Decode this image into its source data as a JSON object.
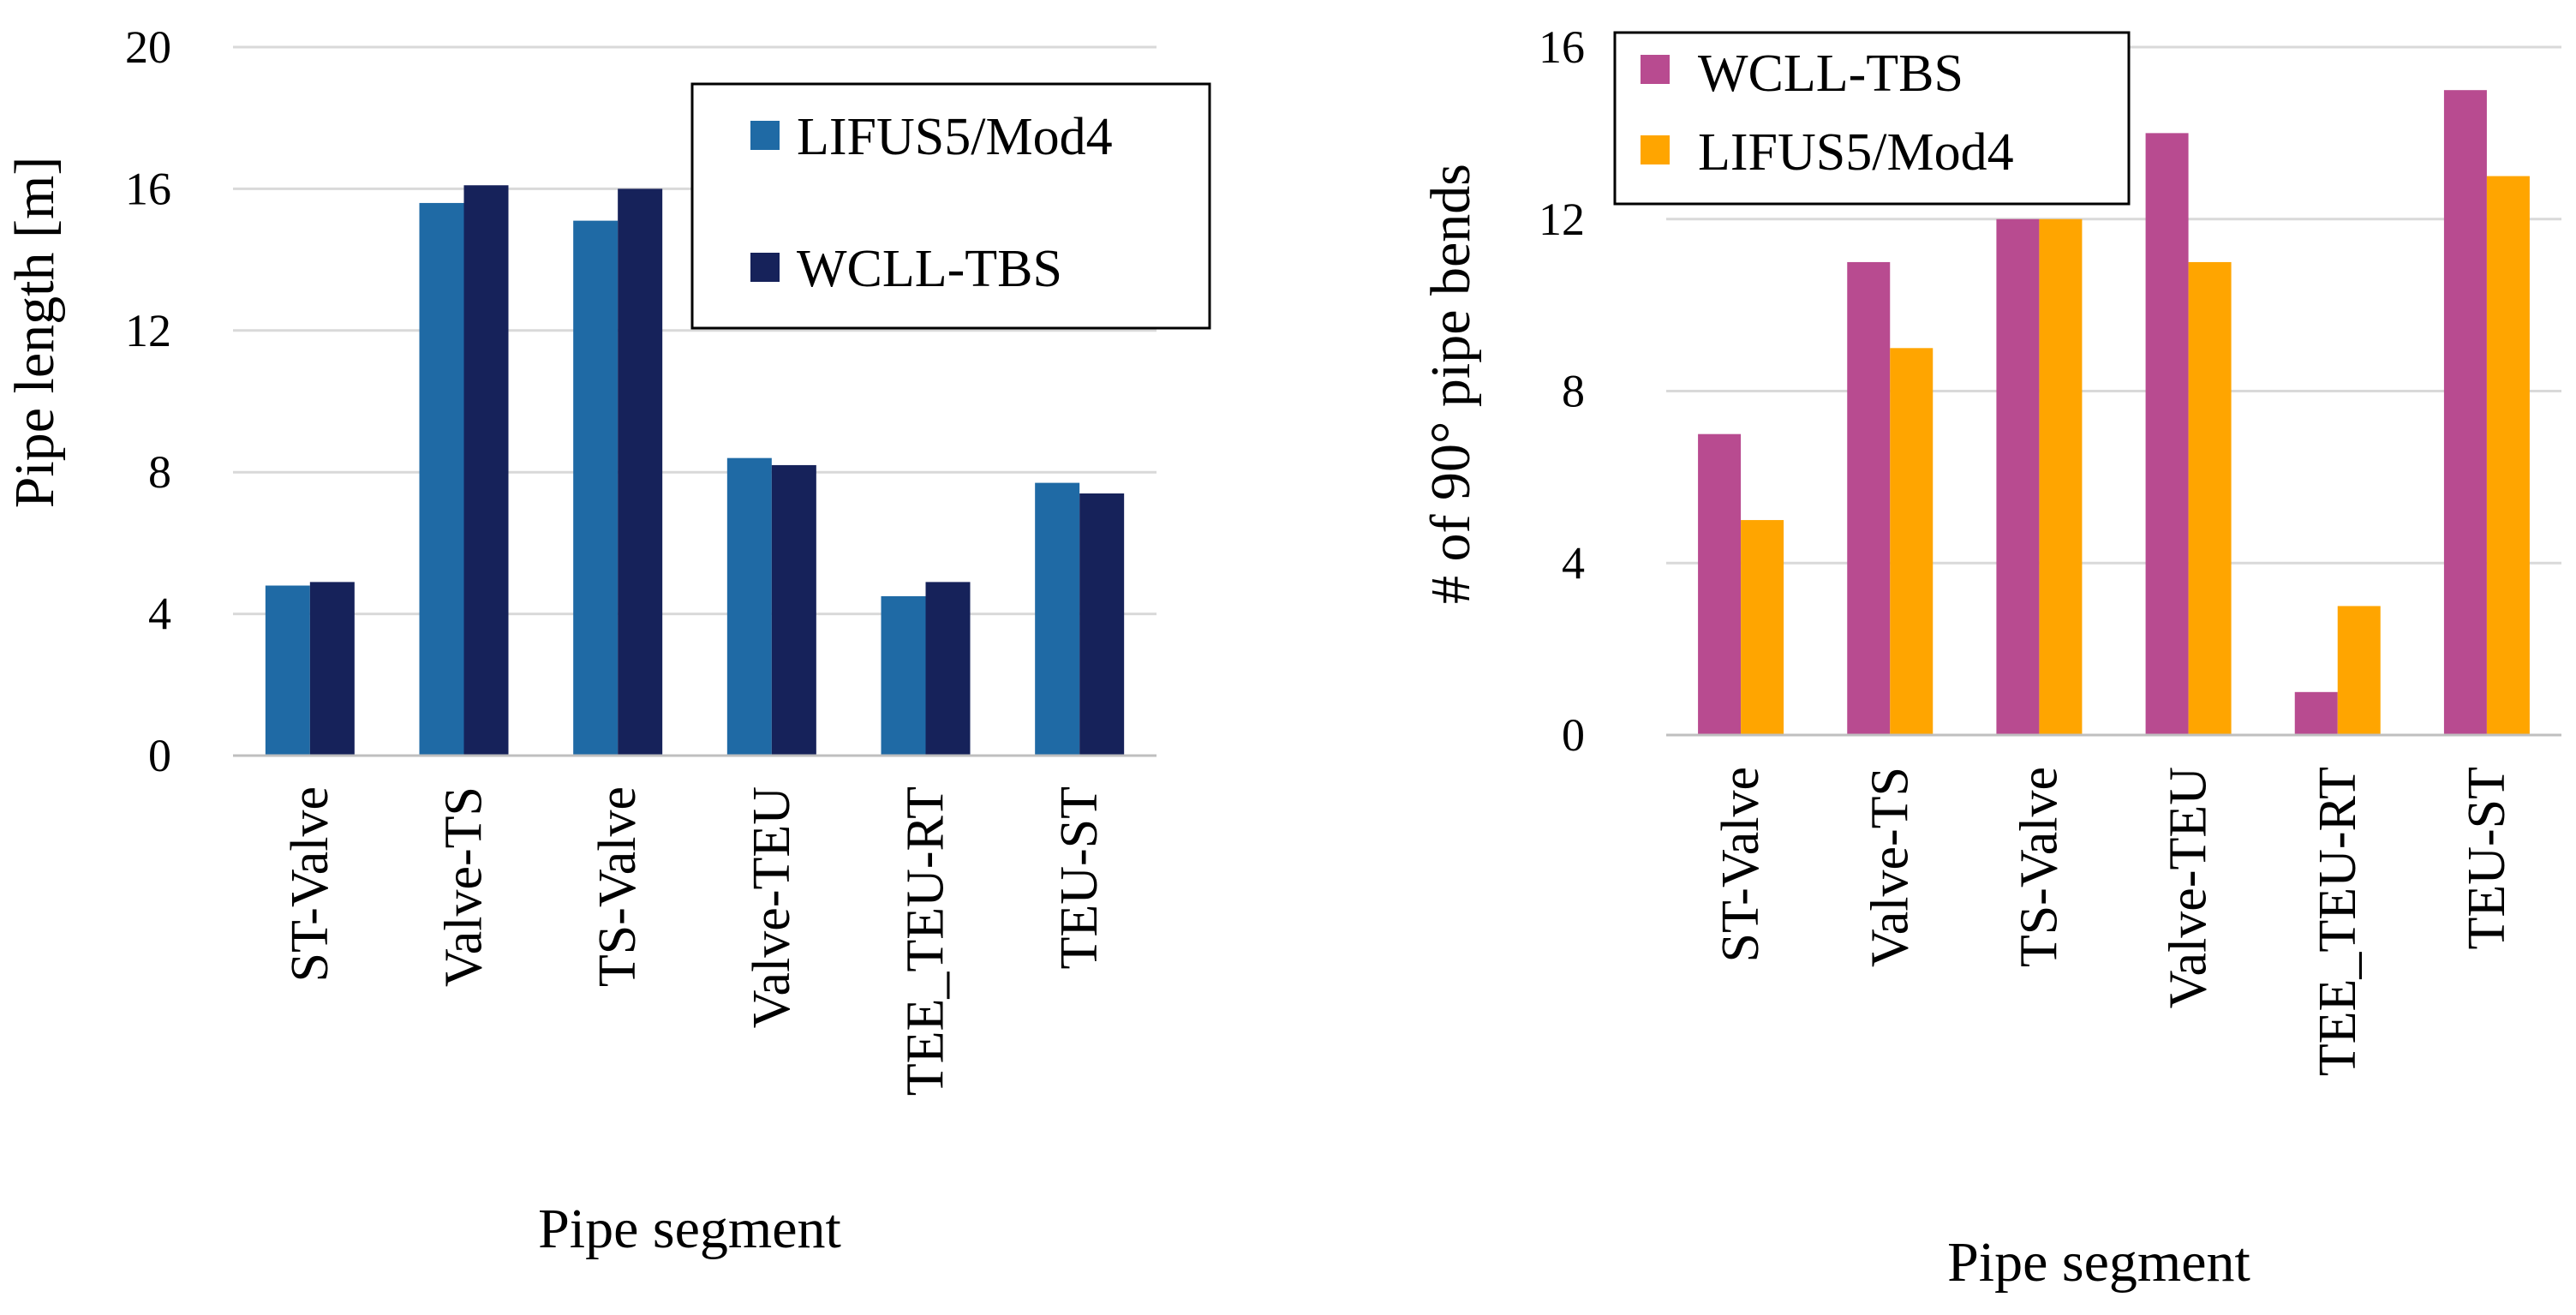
{
  "chart_data": [
    {
      "type": "bar",
      "title": "",
      "xlabel": "Pipe segment",
      "ylabel": "Pipe length [m]",
      "ylim": [
        0,
        20
      ],
      "yticks": [
        "0",
        "4",
        "8",
        "12",
        "16",
        "20"
      ],
      "grid": true,
      "legend_position": "top-right",
      "categories": [
        "ST-Valve",
        "Valve-TS",
        "TS-Valve",
        "Valve-TEU",
        "TEE_TEU-RT",
        "TEU-ST"
      ],
      "series": [
        {
          "name": "LIFUS5/Mod4",
          "color": "#1f6aa5",
          "values": [
            4.8,
            15.6,
            15.1,
            8.4,
            4.5,
            7.7
          ]
        },
        {
          "name": "WCLL-TBS",
          "color": "#16225a",
          "values": [
            4.9,
            16.1,
            16.0,
            8.2,
            4.9,
            7.4
          ]
        }
      ]
    },
    {
      "type": "bar",
      "title": "",
      "xlabel": "Pipe segment",
      "ylabel": "# of 90° pipe bends",
      "ylim": [
        0,
        16
      ],
      "yticks": [
        "0",
        "4",
        "8",
        "12",
        "16"
      ],
      "grid": true,
      "legend_position": "top-left",
      "categories": [
        "ST-Valve",
        "Valve-TS",
        "TS-Valve",
        "Valve-TEU",
        "TEE_TEU-RT",
        "TEU-ST"
      ],
      "series": [
        {
          "name": "WCLL-TBS",
          "color": "#b84b90",
          "values": [
            7,
            11,
            12,
            14,
            1,
            15
          ]
        },
        {
          "name": "LIFUS5/Mod4",
          "color": "#ffa500",
          "values": [
            5,
            9,
            12,
            11,
            3,
            13
          ]
        }
      ]
    }
  ]
}
